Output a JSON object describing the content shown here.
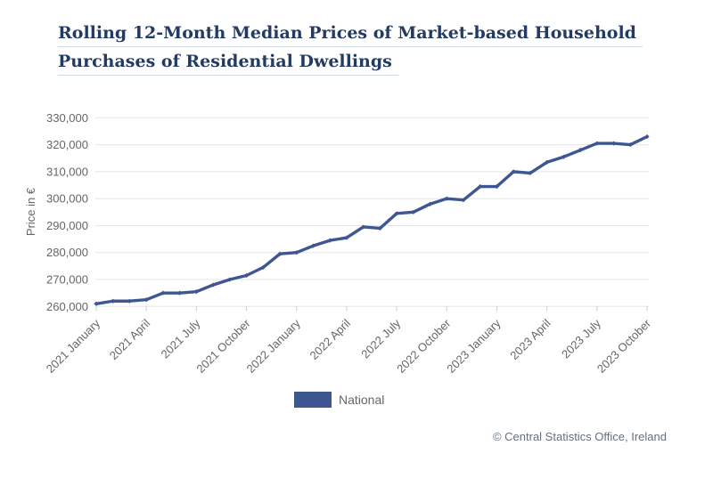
{
  "title": {
    "line1": "Rolling 12-Month Median Prices of Market-based Household",
    "line2": "Purchases of Residential Dwellings",
    "color": "#233b63"
  },
  "legend": {
    "label": "National",
    "swatch_color": "#3e5691",
    "position": "bottom-center"
  },
  "footer": {
    "text": "© Central Statistics Office, Ireland",
    "color": "#66717d"
  },
  "chart_data": {
    "type": "line",
    "title": "Rolling 12-Month Median Prices of Market-based Household Purchases of Residential Dwellings",
    "xlabel": "",
    "ylabel": "Price in €",
    "ylim": [
      260000,
      330000
    ],
    "ytick_step": 10000,
    "yticks": [
      260000,
      270000,
      280000,
      290000,
      300000,
      310000,
      320000,
      330000
    ],
    "ytick_labels": [
      "260,000",
      "270,000",
      "280,000",
      "290,000",
      "300,000",
      "310,000",
      "320,000",
      "330,000"
    ],
    "grid": true,
    "legend_position": "bottom",
    "x_tick_interval": 3,
    "x_tick_labels_shown": [
      "2021 January",
      "2021 April",
      "2021 July",
      "2021 October",
      "2022 January",
      "2022 April",
      "2022 July",
      "2022 October",
      "2023 January",
      "2023 April",
      "2023 July",
      "2023 October"
    ],
    "x": [
      "2021 January",
      "2021 February",
      "2021 March",
      "2021 April",
      "2021 May",
      "2021 June",
      "2021 July",
      "2021 August",
      "2021 September",
      "2021 October",
      "2021 November",
      "2021 December",
      "2022 January",
      "2022 February",
      "2022 March",
      "2022 April",
      "2022 May",
      "2022 June",
      "2022 July",
      "2022 August",
      "2022 September",
      "2022 October",
      "2022 November",
      "2022 December",
      "2023 January",
      "2023 February",
      "2023 March",
      "2023 April",
      "2023 May",
      "2023 June",
      "2023 July",
      "2023 August",
      "2023 September",
      "2023 October"
    ],
    "series": [
      {
        "name": "National",
        "color": "#3e5691",
        "values": [
          261000,
          262000,
          262000,
          262500,
          265000,
          265000,
          265500,
          268000,
          270000,
          271500,
          274500,
          279500,
          280000,
          282500,
          284500,
          285500,
          289500,
          289000,
          294500,
          295000,
          298000,
          300000,
          299500,
          304500,
          304500,
          310000,
          309500,
          313500,
          315500,
          318000,
          320500,
          320500,
          320000,
          323000
        ]
      }
    ],
    "colors": {
      "gridline": "#e5e5e5",
      "tick_mark": "#cccccc",
      "axis_label": "#666666"
    }
  }
}
